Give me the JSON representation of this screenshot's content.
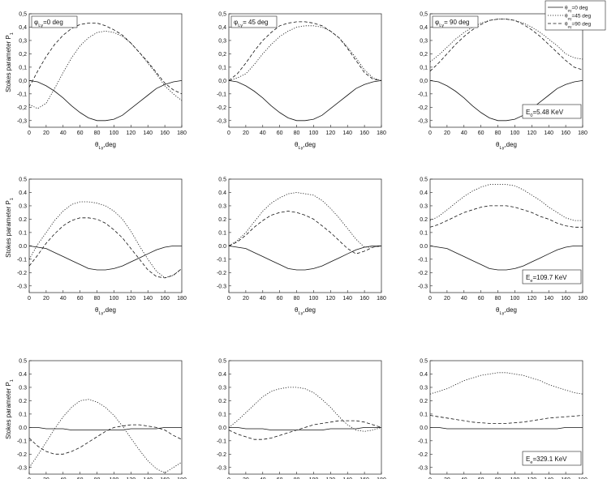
{
  "figure": {
    "ylabel_main": "Stokes parameter P",
    "ylabel_sub": "1",
    "xlabel_main": "θ",
    "xlabel_sub": "Lγ",
    "xlabel_unit": ",deg",
    "phi_prefix": "φ",
    "phi_sub": "Lγ",
    "energy_prefix": "E",
    "energy_sub_0": "0",
    "energy_sub_e": "e",
    "legend": [
      {
        "main": "θ",
        "sub": "eγ",
        "text": "=0 deg",
        "style": "solid"
      },
      {
        "main": "θ",
        "sub": "eγ",
        "text": "=45 deg",
        "style": "dotted"
      },
      {
        "main": "θ",
        "sub": "eγ",
        "text": "=90 deg",
        "style": "dashed"
      }
    ]
  },
  "chart_data": [
    {
      "type": "line",
      "row": 0,
      "col": 0,
      "phi": "=0 deg",
      "xlim": [
        0,
        180
      ],
      "ylim": [
        -0.35,
        0.5
      ],
      "xticks": [
        "0",
        "20",
        "40",
        "60",
        "80",
        "100",
        "120",
        "140",
        "160",
        "180"
      ],
      "yticks": [
        "-0,3",
        "-0,2",
        "-0,1",
        "0,0",
        "0,1",
        "0,2",
        "0,3",
        "0,4",
        "0,5"
      ],
      "x": [
        0,
        10,
        20,
        30,
        40,
        50,
        60,
        70,
        80,
        90,
        100,
        110,
        120,
        130,
        140,
        150,
        160,
        170,
        180
      ],
      "series": [
        {
          "style": "solid",
          "values": [
            0,
            -0.01,
            -0.04,
            -0.08,
            -0.13,
            -0.19,
            -0.24,
            -0.28,
            -0.3,
            -0.3,
            -0.29,
            -0.26,
            -0.21,
            -0.16,
            -0.11,
            -0.06,
            -0.03,
            -0.01,
            0
          ]
        },
        {
          "style": "dotted",
          "values": [
            -0.18,
            -0.21,
            -0.17,
            -0.06,
            0.06,
            0.17,
            0.26,
            0.32,
            0.36,
            0.37,
            0.36,
            0.33,
            0.28,
            0.21,
            0.13,
            0.05,
            -0.04,
            -0.1,
            -0.15
          ]
        },
        {
          "style": "dashed",
          "values": [
            -0.05,
            0.07,
            0.18,
            0.27,
            0.34,
            0.39,
            0.42,
            0.43,
            0.43,
            0.41,
            0.38,
            0.34,
            0.28,
            0.21,
            0.14,
            0.06,
            -0.02,
            -0.07,
            -0.1
          ]
        }
      ]
    },
    {
      "type": "line",
      "row": 0,
      "col": 1,
      "phi": "= 45 deg",
      "xlim": [
        0,
        180
      ],
      "ylim": [
        -0.35,
        0.5
      ],
      "xticks": [
        "0",
        "20",
        "40",
        "60",
        "80",
        "100",
        "120",
        "140",
        "160",
        "180"
      ],
      "yticks": [
        "-0,3",
        "-0,2",
        "-0,1",
        "0,0",
        "0,1",
        "0,2",
        "0,3",
        "0,4",
        "0,5"
      ],
      "x": [
        0,
        10,
        20,
        30,
        40,
        50,
        60,
        70,
        80,
        90,
        100,
        110,
        120,
        130,
        140,
        150,
        160,
        170,
        180
      ],
      "series": [
        {
          "style": "solid",
          "values": [
            0,
            -0.01,
            -0.04,
            -0.08,
            -0.13,
            -0.19,
            -0.24,
            -0.28,
            -0.3,
            -0.3,
            -0.29,
            -0.26,
            -0.21,
            -0.16,
            -0.11,
            -0.06,
            -0.03,
            -0.01,
            0
          ]
        },
        {
          "style": "dotted",
          "values": [
            0,
            0.02,
            0.05,
            0.12,
            0.2,
            0.27,
            0.33,
            0.37,
            0.4,
            0.41,
            0.41,
            0.4,
            0.37,
            0.32,
            0.25,
            0.17,
            0.08,
            0.02,
            0
          ]
        },
        {
          "style": "dashed",
          "values": [
            0,
            0.05,
            0.13,
            0.22,
            0.3,
            0.36,
            0.41,
            0.43,
            0.44,
            0.44,
            0.43,
            0.41,
            0.37,
            0.32,
            0.24,
            0.15,
            0.06,
            0.01,
            0
          ]
        }
      ]
    },
    {
      "type": "line",
      "row": 0,
      "col": 2,
      "phi": "= 90 deg",
      "energy": "=5.48 KeV",
      "energy_sub": "0",
      "xlim": [
        0,
        180
      ],
      "ylim": [
        -0.35,
        0.5
      ],
      "xticks": [
        "0",
        "20",
        "40",
        "60",
        "80",
        "100",
        "120",
        "140",
        "160",
        "180"
      ],
      "yticks": [
        "-0,3",
        "-0,2",
        "-0,1",
        "0,0",
        "0,1",
        "0,2",
        "0,3",
        "0,4",
        "0,5"
      ],
      "x": [
        0,
        10,
        20,
        30,
        40,
        50,
        60,
        70,
        80,
        90,
        100,
        110,
        120,
        130,
        140,
        150,
        160,
        170,
        180
      ],
      "series": [
        {
          "style": "solid",
          "values": [
            0,
            -0.01,
            -0.04,
            -0.08,
            -0.13,
            -0.19,
            -0.24,
            -0.28,
            -0.3,
            -0.3,
            -0.29,
            -0.26,
            -0.21,
            -0.16,
            -0.11,
            -0.06,
            -0.03,
            -0.01,
            0
          ]
        },
        {
          "style": "dotted",
          "values": [
            0.14,
            0.19,
            0.25,
            0.31,
            0.36,
            0.4,
            0.43,
            0.45,
            0.46,
            0.46,
            0.45,
            0.43,
            0.4,
            0.36,
            0.31,
            0.26,
            0.2,
            0.17,
            0.16
          ]
        },
        {
          "style": "dashed",
          "values": [
            0.07,
            0.13,
            0.2,
            0.27,
            0.33,
            0.38,
            0.42,
            0.45,
            0.46,
            0.46,
            0.45,
            0.42,
            0.38,
            0.33,
            0.27,
            0.21,
            0.15,
            0.1,
            0.08
          ]
        }
      ]
    },
    {
      "type": "line",
      "row": 1,
      "col": 0,
      "xlim": [
        0,
        180
      ],
      "ylim": [
        -0.35,
        0.5
      ],
      "xticks": [
        "0",
        "20",
        "40",
        "60",
        "80",
        "100",
        "120",
        "140",
        "160",
        "180"
      ],
      "yticks": [
        "-0.3",
        "-0.2",
        "-0.1",
        "0.0",
        "0.1",
        "0.2",
        "0.3",
        "0.4",
        "0.5"
      ],
      "x": [
        0,
        10,
        20,
        30,
        40,
        50,
        60,
        70,
        80,
        90,
        100,
        110,
        120,
        130,
        140,
        150,
        160,
        170,
        180
      ],
      "series": [
        {
          "style": "solid",
          "values": [
            0,
            -0.01,
            -0.02,
            -0.05,
            -0.08,
            -0.11,
            -0.14,
            -0.17,
            -0.18,
            -0.18,
            -0.17,
            -0.15,
            -0.12,
            -0.09,
            -0.06,
            -0.03,
            -0.01,
            0,
            0
          ]
        },
        {
          "style": "dotted",
          "values": [
            -0.1,
            0.01,
            0.1,
            0.19,
            0.26,
            0.31,
            0.33,
            0.33,
            0.32,
            0.3,
            0.26,
            0.2,
            0.11,
            0.0,
            -0.1,
            -0.19,
            -0.24,
            -0.22,
            -0.17
          ]
        },
        {
          "style": "dashed",
          "values": [
            -0.15,
            -0.07,
            0.02,
            0.09,
            0.15,
            0.19,
            0.21,
            0.21,
            0.2,
            0.17,
            0.12,
            0.06,
            -0.02,
            -0.1,
            -0.18,
            -0.23,
            -0.24,
            -0.22,
            -0.17
          ]
        }
      ]
    },
    {
      "type": "line",
      "row": 1,
      "col": 1,
      "xlim": [
        0,
        180
      ],
      "ylim": [
        -0.35,
        0.5
      ],
      "xticks": [
        "0",
        "20",
        "40",
        "60",
        "80",
        "100",
        "120",
        "140",
        "160",
        "180"
      ],
      "yticks": [
        "-0.3",
        "-0.2",
        "-0.1",
        "0.0",
        "0.1",
        "0.2",
        "0.3",
        "0.4",
        "0.5"
      ],
      "x": [
        0,
        10,
        20,
        30,
        40,
        50,
        60,
        70,
        80,
        90,
        100,
        110,
        120,
        130,
        140,
        150,
        160,
        170,
        180
      ],
      "series": [
        {
          "style": "solid",
          "values": [
            0,
            -0.01,
            -0.02,
            -0.05,
            -0.08,
            -0.11,
            -0.14,
            -0.17,
            -0.18,
            -0.18,
            -0.17,
            -0.15,
            -0.12,
            -0.09,
            -0.06,
            -0.03,
            -0.01,
            0,
            0
          ]
        },
        {
          "style": "dotted",
          "values": [
            0,
            0.04,
            0.1,
            0.18,
            0.26,
            0.32,
            0.36,
            0.39,
            0.4,
            0.39,
            0.38,
            0.34,
            0.28,
            0.21,
            0.13,
            0.05,
            -0.01,
            -0.01,
            0
          ]
        },
        {
          "style": "dashed",
          "values": [
            0,
            0.03,
            0.08,
            0.14,
            0.19,
            0.23,
            0.25,
            0.26,
            0.25,
            0.23,
            0.2,
            0.15,
            0.1,
            0.04,
            -0.02,
            -0.06,
            -0.04,
            -0.01,
            0
          ]
        }
      ]
    },
    {
      "type": "line",
      "row": 1,
      "col": 2,
      "energy": "=109.7 KeV",
      "energy_sub": "e",
      "xlim": [
        0,
        180
      ],
      "ylim": [
        -0.35,
        0.5
      ],
      "xticks": [
        "0",
        "20",
        "40",
        "60",
        "80",
        "100",
        "120",
        "140",
        "160",
        "180"
      ],
      "yticks": [
        "-0.3",
        "-0.2",
        "-0.1",
        "0.0",
        "0.1",
        "0.2",
        "0.3",
        "0.4",
        "0.5"
      ],
      "x": [
        0,
        10,
        20,
        30,
        40,
        50,
        60,
        70,
        80,
        90,
        100,
        110,
        120,
        130,
        140,
        150,
        160,
        170,
        180
      ],
      "series": [
        {
          "style": "solid",
          "values": [
            0,
            -0.01,
            -0.02,
            -0.05,
            -0.08,
            -0.11,
            -0.14,
            -0.17,
            -0.18,
            -0.18,
            -0.17,
            -0.15,
            -0.12,
            -0.09,
            -0.06,
            -0.03,
            -0.01,
            0,
            0
          ]
        },
        {
          "style": "dotted",
          "values": [
            0.19,
            0.22,
            0.27,
            0.32,
            0.37,
            0.41,
            0.44,
            0.46,
            0.46,
            0.46,
            0.45,
            0.42,
            0.38,
            0.34,
            0.29,
            0.25,
            0.21,
            0.19,
            0.19
          ]
        },
        {
          "style": "dashed",
          "values": [
            0.14,
            0.16,
            0.19,
            0.22,
            0.25,
            0.27,
            0.29,
            0.3,
            0.3,
            0.3,
            0.29,
            0.27,
            0.25,
            0.22,
            0.2,
            0.17,
            0.15,
            0.14,
            0.14
          ]
        }
      ]
    },
    {
      "type": "line",
      "row": 2,
      "col": 0,
      "xlim": [
        0,
        180
      ],
      "ylim": [
        -0.35,
        0.5
      ],
      "xticks": [
        "0",
        "20",
        "40",
        "60",
        "80",
        "100",
        "120",
        "140",
        "160",
        "180"
      ],
      "yticks": [
        "-0.3",
        "-0.2",
        "-0.1",
        "0.0",
        "0.1",
        "0.2",
        "0.3",
        "0.4",
        "0.5"
      ],
      "x": [
        0,
        10,
        20,
        30,
        40,
        50,
        60,
        70,
        80,
        90,
        100,
        110,
        120,
        130,
        140,
        150,
        160,
        170,
        180
      ],
      "series": [
        {
          "style": "solid",
          "values": [
            0,
            0,
            -0.01,
            -0.01,
            -0.01,
            -0.02,
            -0.02,
            -0.02,
            -0.02,
            -0.02,
            -0.02,
            -0.02,
            -0.01,
            -0.01,
            -0.01,
            -0.01,
            0,
            0,
            0
          ]
        },
        {
          "style": "dotted",
          "values": [
            -0.3,
            -0.21,
            -0.11,
            -0.01,
            0.08,
            0.15,
            0.2,
            0.21,
            0.19,
            0.15,
            0.09,
            0.01,
            -0.08,
            -0.17,
            -0.25,
            -0.31,
            -0.34,
            -0.3,
            -0.26
          ]
        },
        {
          "style": "dashed",
          "values": [
            -0.08,
            -0.14,
            -0.18,
            -0.2,
            -0.2,
            -0.18,
            -0.15,
            -0.11,
            -0.07,
            -0.03,
            0,
            0.01,
            0.02,
            0.02,
            0.01,
            0,
            -0.02,
            -0.06,
            -0.09
          ]
        }
      ]
    },
    {
      "type": "line",
      "row": 2,
      "col": 1,
      "xlim": [
        0,
        180
      ],
      "ylim": [
        -0.35,
        0.5
      ],
      "xticks": [
        "0",
        "20",
        "40",
        "60",
        "80",
        "100",
        "120",
        "140",
        "160",
        "180"
      ],
      "yticks": [
        "-0.3",
        "-0.2",
        "-0.1",
        "0.0",
        "0.1",
        "0.2",
        "0.3",
        "0.4",
        "0.5"
      ],
      "x": [
        0,
        10,
        20,
        30,
        40,
        50,
        60,
        70,
        80,
        90,
        100,
        110,
        120,
        130,
        140,
        150,
        160,
        170,
        180
      ],
      "series": [
        {
          "style": "solid",
          "values": [
            0,
            0,
            -0.01,
            -0.01,
            -0.01,
            -0.02,
            -0.02,
            -0.02,
            -0.02,
            -0.02,
            -0.02,
            -0.02,
            -0.01,
            -0.01,
            -0.01,
            -0.01,
            0,
            0,
            0
          ]
        },
        {
          "style": "dotted",
          "values": [
            0,
            0.05,
            0.11,
            0.17,
            0.23,
            0.27,
            0.29,
            0.3,
            0.3,
            0.29,
            0.26,
            0.21,
            0.15,
            0.08,
            0.02,
            -0.02,
            -0.03,
            -0.02,
            0
          ]
        },
        {
          "style": "dashed",
          "values": [
            -0.02,
            -0.05,
            -0.07,
            -0.09,
            -0.09,
            -0.08,
            -0.06,
            -0.04,
            -0.02,
            0,
            0.02,
            0.03,
            0.04,
            0.05,
            0.05,
            0.05,
            0.04,
            0.02,
            0
          ]
        }
      ]
    },
    {
      "type": "line",
      "row": 2,
      "col": 2,
      "energy": "=329.1 KeV",
      "energy_sub": "e",
      "xlim": [
        0,
        180
      ],
      "ylim": [
        -0.35,
        0.5
      ],
      "xticks": [
        "0",
        "20",
        "40",
        "60",
        "80",
        "100",
        "120",
        "140",
        "160",
        "180"
      ],
      "yticks": [
        "-0.3",
        "-0.2",
        "-0.1",
        "0.0",
        "0.1",
        "0.2",
        "0.3",
        "0.4",
        "0.5"
      ],
      "x": [
        0,
        10,
        20,
        30,
        40,
        50,
        60,
        70,
        80,
        90,
        100,
        110,
        120,
        130,
        140,
        150,
        160,
        170,
        180
      ],
      "series": [
        {
          "style": "solid",
          "values": [
            0,
            0,
            -0.01,
            -0.01,
            -0.01,
            -0.01,
            -0.01,
            -0.01,
            -0.01,
            -0.01,
            -0.01,
            -0.01,
            -0.01,
            -0.01,
            -0.01,
            -0.01,
            0,
            0,
            0
          ]
        },
        {
          "style": "dotted",
          "values": [
            0.25,
            0.27,
            0.29,
            0.32,
            0.35,
            0.37,
            0.39,
            0.4,
            0.41,
            0.41,
            0.4,
            0.39,
            0.37,
            0.35,
            0.32,
            0.3,
            0.28,
            0.26,
            0.25
          ]
        },
        {
          "style": "dashed",
          "values": [
            0.09,
            0.08,
            0.07,
            0.06,
            0.05,
            0.04,
            0.035,
            0.03,
            0.03,
            0.03,
            0.035,
            0.04,
            0.05,
            0.06,
            0.07,
            0.075,
            0.08,
            0.085,
            0.09
          ]
        }
      ]
    }
  ]
}
